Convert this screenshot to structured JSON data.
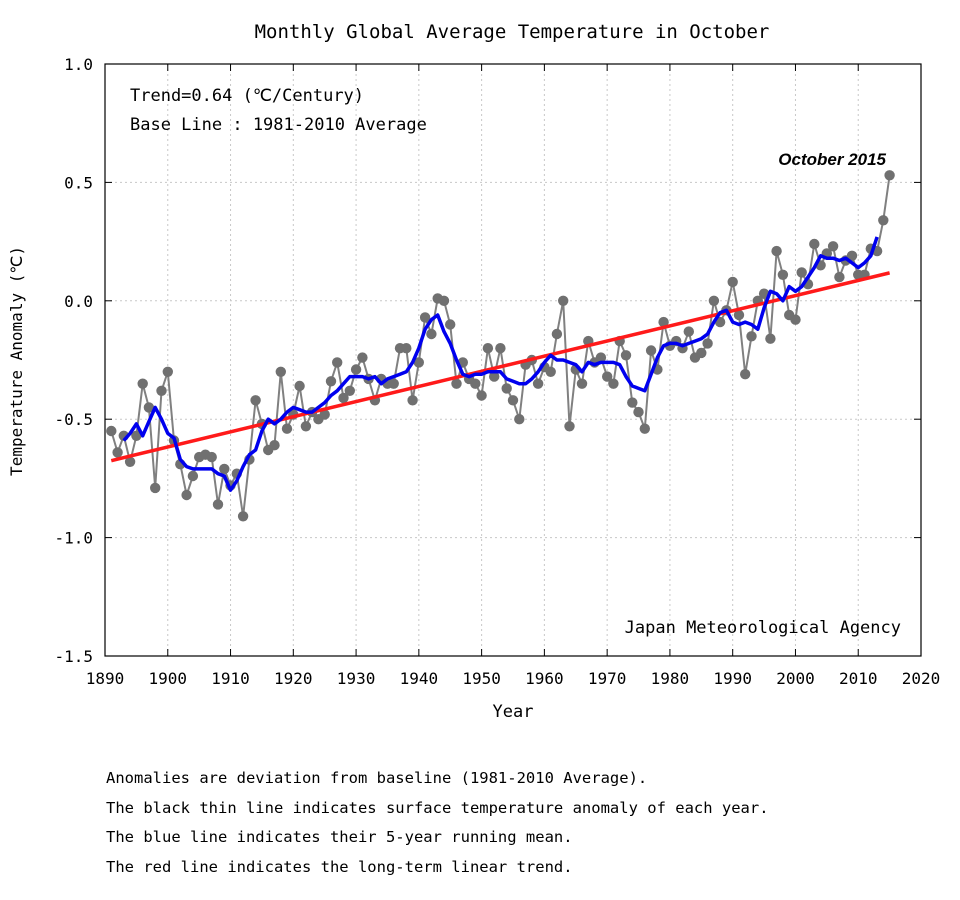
{
  "chart_data": {
    "type": "line",
    "title": "Monthly Global Average Temperature in October",
    "xlabel": "Year",
    "ylabel": "Temperature Anomaly (℃)",
    "xlim": [
      1890,
      2020
    ],
    "ylim": [
      -1.5,
      1.0
    ],
    "xticks": [
      "1890",
      "1900",
      "1910",
      "1920",
      "1930",
      "1940",
      "1950",
      "1960",
      "1970",
      "1980",
      "1990",
      "2000",
      "2010",
      "2020"
    ],
    "yticks": [
      "1.0",
      "0.5",
      "0.0",
      "-0.5",
      "-1.0",
      "-1.5"
    ],
    "grid": true,
    "legend_text": [
      "Trend=0.64 (℃/Century)",
      "Base Line : 1981-2010 Average"
    ],
    "annotations": {
      "latest_label": "October 2015",
      "source": "Japan Meteorological Agency"
    },
    "series": [
      {
        "name": "Annual anomaly",
        "color": "#808080",
        "marker_color": "#707070",
        "x": [
          1891,
          1892,
          1893,
          1894,
          1895,
          1896,
          1897,
          1898,
          1899,
          1900,
          1901,
          1902,
          1903,
          1904,
          1905,
          1906,
          1907,
          1908,
          1909,
          1910,
          1911,
          1912,
          1913,
          1914,
          1915,
          1916,
          1917,
          1918,
          1919,
          1920,
          1921,
          1922,
          1923,
          1924,
          1925,
          1926,
          1927,
          1928,
          1929,
          1930,
          1931,
          1932,
          1933,
          1934,
          1935,
          1936,
          1937,
          1938,
          1939,
          1940,
          1941,
          1942,
          1943,
          1944,
          1945,
          1946,
          1947,
          1948,
          1949,
          1950,
          1951,
          1952,
          1953,
          1954,
          1955,
          1956,
          1957,
          1958,
          1959,
          1960,
          1961,
          1962,
          1963,
          1964,
          1965,
          1966,
          1967,
          1968,
          1969,
          1970,
          1971,
          1972,
          1973,
          1974,
          1975,
          1976,
          1977,
          1978,
          1979,
          1980,
          1981,
          1982,
          1983,
          1984,
          1985,
          1986,
          1987,
          1988,
          1989,
          1990,
          1991,
          1992,
          1993,
          1994,
          1995,
          1996,
          1997,
          1998,
          1999,
          2000,
          2001,
          2002,
          2003,
          2004,
          2005,
          2006,
          2007,
          2008,
          2009,
          2010,
          2011,
          2012,
          2013,
          2014,
          2015
        ],
        "values": [
          -0.55,
          -0.64,
          -0.57,
          -0.68,
          -0.57,
          -0.35,
          -0.45,
          -0.79,
          -0.38,
          -0.3,
          -0.59,
          -0.69,
          -0.82,
          -0.74,
          -0.66,
          -0.65,
          -0.66,
          -0.86,
          -0.71,
          -0.78,
          -0.73,
          -0.91,
          -0.67,
          -0.42,
          -0.52,
          -0.63,
          -0.61,
          -0.3,
          -0.54,
          -0.48,
          -0.36,
          -0.53,
          -0.47,
          -0.5,
          -0.48,
          -0.34,
          -0.26,
          -0.41,
          -0.38,
          -0.29,
          -0.24,
          -0.33,
          -0.42,
          -0.33,
          -0.35,
          -0.35,
          -0.2,
          -0.2,
          -0.42,
          -0.26,
          -0.07,
          -0.14,
          0.01,
          0.0,
          -0.1,
          -0.35,
          -0.26,
          -0.33,
          -0.35,
          -0.4,
          -0.2,
          -0.32,
          -0.2,
          -0.37,
          -0.42,
          -0.5,
          -0.27,
          -0.25,
          -0.35,
          -0.28,
          -0.3,
          -0.14,
          0.0,
          -0.53,
          -0.29,
          -0.35,
          -0.17,
          -0.26,
          -0.24,
          -0.32,
          -0.35,
          -0.17,
          -0.23,
          -0.43,
          -0.47,
          -0.54,
          -0.21,
          -0.29,
          -0.09,
          -0.19,
          -0.17,
          -0.2,
          -0.13,
          -0.24,
          -0.22,
          -0.18,
          0.0,
          -0.09,
          -0.04,
          0.08,
          -0.06,
          -0.31,
          -0.15,
          0.0,
          0.03,
          -0.16,
          0.21,
          0.11,
          -0.06,
          -0.08,
          0.12,
          0.07,
          0.24,
          0.15,
          0.2,
          0.23,
          0.1,
          0.17,
          0.19,
          0.11,
          0.11,
          0.22,
          0.21,
          0.34,
          0.53
        ]
      },
      {
        "name": "5-year running mean",
        "color": "#0000ee",
        "x": [
          1893,
          1894,
          1895,
          1896,
          1897,
          1898,
          1899,
          1900,
          1901,
          1902,
          1903,
          1904,
          1905,
          1906,
          1907,
          1908,
          1909,
          1910,
          1911,
          1912,
          1913,
          1914,
          1915,
          1916,
          1917,
          1918,
          1919,
          1920,
          1921,
          1922,
          1923,
          1924,
          1925,
          1926,
          1927,
          1928,
          1929,
          1930,
          1931,
          1932,
          1933,
          1934,
          1935,
          1936,
          1937,
          1938,
          1939,
          1940,
          1941,
          1942,
          1943,
          1944,
          1945,
          1946,
          1947,
          1948,
          1949,
          1950,
          1951,
          1952,
          1953,
          1954,
          1955,
          1956,
          1957,
          1958,
          1959,
          1960,
          1961,
          1962,
          1963,
          1964,
          1965,
          1966,
          1967,
          1968,
          1969,
          1970,
          1971,
          1972,
          1973,
          1974,
          1975,
          1976,
          1977,
          1978,
          1979,
          1980,
          1981,
          1982,
          1983,
          1984,
          1985,
          1986,
          1987,
          1988,
          1989,
          1990,
          1991,
          1992,
          1993,
          1994,
          1995,
          1996,
          1997,
          1998,
          1999,
          2000,
          2001,
          2002,
          2003,
          2004,
          2005,
          2006,
          2007,
          2008,
          2009,
          2010,
          2011,
          2012,
          2013
        ],
        "values": [
          -0.59,
          -0.56,
          -0.52,
          -0.57,
          -0.51,
          -0.45,
          -0.5,
          -0.56,
          -0.58,
          -0.67,
          -0.7,
          -0.71,
          -0.71,
          -0.71,
          -0.71,
          -0.73,
          -0.74,
          -0.8,
          -0.76,
          -0.7,
          -0.65,
          -0.63,
          -0.55,
          -0.5,
          -0.52,
          -0.5,
          -0.47,
          -0.45,
          -0.46,
          -0.47,
          -0.47,
          -0.45,
          -0.43,
          -0.4,
          -0.38,
          -0.35,
          -0.32,
          -0.32,
          -0.32,
          -0.33,
          -0.32,
          -0.35,
          -0.33,
          -0.32,
          -0.31,
          -0.3,
          -0.26,
          -0.2,
          -0.12,
          -0.08,
          -0.06,
          -0.13,
          -0.18,
          -0.25,
          -0.31,
          -0.32,
          -0.31,
          -0.31,
          -0.3,
          -0.3,
          -0.3,
          -0.33,
          -0.34,
          -0.35,
          -0.35,
          -0.33,
          -0.3,
          -0.26,
          -0.23,
          -0.25,
          -0.25,
          -0.26,
          -0.27,
          -0.3,
          -0.26,
          -0.27,
          -0.26,
          -0.26,
          -0.26,
          -0.27,
          -0.32,
          -0.36,
          -0.37,
          -0.38,
          -0.31,
          -0.24,
          -0.19,
          -0.18,
          -0.18,
          -0.19,
          -0.18,
          -0.17,
          -0.16,
          -0.14,
          -0.09,
          -0.05,
          -0.04,
          -0.09,
          -0.1,
          -0.09,
          -0.1,
          -0.12,
          -0.03,
          0.04,
          0.03,
          0.0,
          0.06,
          0.04,
          0.06,
          0.1,
          0.14,
          0.19,
          0.18,
          0.18,
          0.17,
          0.18,
          0.16,
          0.14,
          0.16,
          0.19,
          0.27
        ]
      },
      {
        "name": "Long-term linear trend",
        "color": "#ff1a1a",
        "x": [
          1891,
          2015
        ],
        "values": [
          -0.675,
          0.118
        ]
      }
    ]
  },
  "notes": [
    "Anomalies are deviation from baseline (1981-2010 Average).",
    "The black thin line indicates surface temperature anomaly of each year.",
    "The blue line indicates their 5-year running mean.",
    "The red line indicates the long-term linear trend."
  ]
}
